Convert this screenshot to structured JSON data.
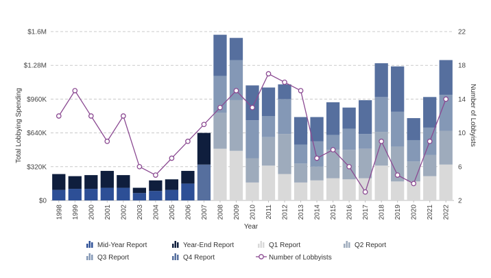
{
  "chart_data": {
    "type": "bar",
    "xlabel": "Year",
    "ylabel_left": "Total Lobbying Spending",
    "ylabel_right": "Number of Lobbyists",
    "ylim_left": [
      0,
      1600000
    ],
    "ylim_right": [
      2,
      22
    ],
    "yticks_left": [
      {
        "value": 0,
        "label": "$0"
      },
      {
        "value": 320000,
        "label": "$320K"
      },
      {
        "value": 640000,
        "label": "$640K"
      },
      {
        "value": 960000,
        "label": "$960K"
      },
      {
        "value": 1280000,
        "label": "$1.28M"
      },
      {
        "value": 1600000,
        "label": "$1.6M"
      }
    ],
    "yticks_right": [
      2,
      6,
      10,
      14,
      18,
      22
    ],
    "grid": true,
    "legend_position": "bottom",
    "categories": [
      "1998",
      "1999",
      "2000",
      "2001",
      "2002",
      "2003",
      "2004",
      "2005",
      "2006",
      "2007",
      "2008",
      "2009",
      "2010",
      "2011",
      "2012",
      "2013",
      "2014",
      "2015",
      "2016",
      "2017",
      "2018",
      "2019",
      "2020",
      "2021",
      "2022"
    ],
    "series": [
      {
        "name": "Q1 Report",
        "stack": "total",
        "color": "#d9d9d9",
        "values": [
          0,
          0,
          0,
          0,
          0,
          0,
          0,
          0,
          0,
          0,
          490000,
          470000,
          170000,
          330000,
          250000,
          170000,
          190000,
          210000,
          200000,
          210000,
          330000,
          180000,
          180000,
          230000,
          340000
        ]
      },
      {
        "name": "Q2 Report",
        "stack": "total",
        "color": "#9eabbc",
        "values": [
          0,
          0,
          0,
          0,
          0,
          0,
          0,
          0,
          0,
          0,
          340000,
          480000,
          230000,
          270000,
          380000,
          180000,
          130000,
          270000,
          280000,
          280000,
          320000,
          330000,
          190000,
          200000,
          320000
        ]
      },
      {
        "name": "Q3 Report",
        "stack": "total",
        "color": "#8498b6",
        "values": [
          0,
          0,
          0,
          0,
          0,
          0,
          0,
          0,
          0,
          0,
          350000,
          380000,
          360000,
          200000,
          330000,
          180000,
          240000,
          140000,
          200000,
          140000,
          330000,
          330000,
          200000,
          260000,
          340000
        ]
      },
      {
        "name": "Q4 Report",
        "stack": "total",
        "color": "#566f9e",
        "values": [
          0,
          0,
          0,
          0,
          0,
          0,
          0,
          0,
          0,
          340000,
          390000,
          210000,
          330000,
          270000,
          140000,
          260000,
          230000,
          310000,
          200000,
          320000,
          320000,
          430000,
          210000,
          290000,
          330000
        ]
      },
      {
        "name": "Mid-Year Report",
        "stack": "total",
        "color": "#2d4f96",
        "values": [
          100000,
          110000,
          110000,
          120000,
          120000,
          70000,
          90000,
          100000,
          160000,
          0,
          0,
          0,
          0,
          0,
          0,
          0,
          0,
          0,
          0,
          0,
          0,
          0,
          0,
          0,
          0
        ]
      },
      {
        "name": "Year-End Report",
        "stack": "total",
        "color": "#0f1e3d",
        "values": [
          150000,
          120000,
          130000,
          160000,
          120000,
          50000,
          100000,
          100000,
          120000,
          300000,
          0,
          0,
          0,
          0,
          0,
          0,
          0,
          0,
          0,
          0,
          0,
          0,
          0,
          0,
          0
        ]
      },
      {
        "name": "Number of Lobbyists",
        "type": "line",
        "axis": "right",
        "color": "#8b4a92",
        "values": [
          12,
          15,
          12,
          9,
          12,
          6,
          5,
          7,
          9,
          11,
          13,
          15,
          13,
          17,
          16,
          15,
          7,
          8,
          6,
          3,
          9,
          5,
          4,
          9,
          14
        ]
      }
    ],
    "legend": [
      {
        "label": "Mid-Year Report",
        "icon": "bar-icon",
        "color": "#2d4f96"
      },
      {
        "label": "Year-End Report",
        "icon": "bar-icon",
        "color": "#0f1e3d"
      },
      {
        "label": "Q1 Report",
        "icon": "bar-icon",
        "color": "#d9d9d9"
      },
      {
        "label": "Q2 Report",
        "icon": "bar-icon",
        "color": "#9eabbc"
      },
      {
        "label": "Q3 Report",
        "icon": "bar-icon",
        "color": "#8498b6"
      },
      {
        "label": "Q4 Report",
        "icon": "bar-icon",
        "color": "#566f9e"
      },
      {
        "label": "Number of Lobbyists",
        "icon": "line-marker-icon",
        "color": "#8b4a92"
      }
    ]
  }
}
